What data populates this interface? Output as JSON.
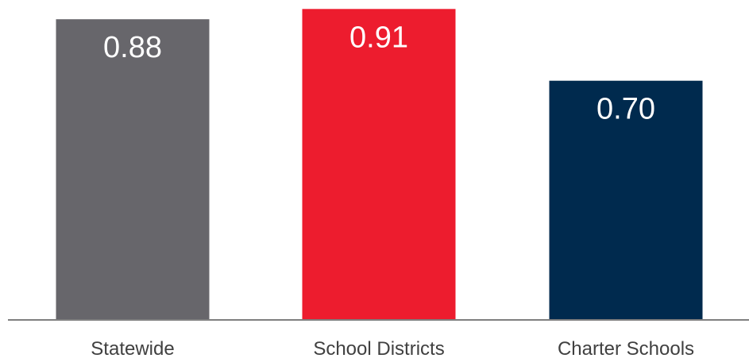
{
  "chart_data": {
    "type": "bar",
    "categories": [
      "Statewide",
      "School Districts",
      "Charter Schools"
    ],
    "values": [
      0.88,
      0.91,
      0.7
    ],
    "value_labels": [
      "0.88",
      "0.91",
      "0.70"
    ],
    "colors": [
      "#67666b",
      "#ed1c2e",
      "#002a4e"
    ],
    "title": "",
    "xlabel": "",
    "ylabel": "",
    "ylim": [
      0,
      0.92
    ],
    "grid": false,
    "legend": "none"
  },
  "style": {
    "axis_color": "#7f7f7f",
    "category_text_color": "#404040",
    "value_text_color": "#ffffff"
  }
}
